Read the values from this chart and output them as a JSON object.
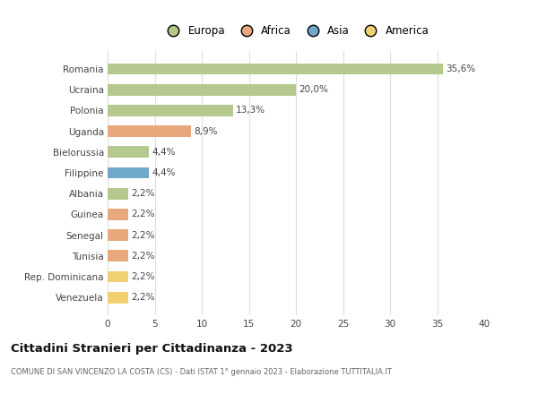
{
  "categories": [
    "Romania",
    "Ucraina",
    "Polonia",
    "Uganda",
    "Bielorussia",
    "Filippine",
    "Albania",
    "Guinea",
    "Senegal",
    "Tunisia",
    "Rep. Dominicana",
    "Venezuela"
  ],
  "values": [
    35.6,
    20.0,
    13.3,
    8.9,
    4.4,
    4.4,
    2.2,
    2.2,
    2.2,
    2.2,
    2.2,
    2.2
  ],
  "labels": [
    "35,6%",
    "20,0%",
    "13,3%",
    "8,9%",
    "4,4%",
    "4,4%",
    "2,2%",
    "2,2%",
    "2,2%",
    "2,2%",
    "2,2%",
    "2,2%"
  ],
  "bar_colors": [
    "#b5c98e",
    "#b5c98e",
    "#b5c98e",
    "#e8a87c",
    "#b5c98e",
    "#6fa8c8",
    "#b5c98e",
    "#e8a87c",
    "#e8a87c",
    "#e8a87c",
    "#f0d070",
    "#f0d070"
  ],
  "legend_labels": [
    "Europa",
    "Africa",
    "Asia",
    "America"
  ],
  "legend_colors": [
    "#b5c98e",
    "#e8a87c",
    "#6fa8c8",
    "#f0d070"
  ],
  "title": "Cittadini Stranieri per Cittadinanza - 2023",
  "subtitle": "COMUNE DI SAN VINCENZO LA COSTA (CS) - Dati ISTAT 1° gennaio 2023 - Elaborazione TUTTITALIA.IT",
  "xlim": [
    0,
    40
  ],
  "xticks": [
    0,
    5,
    10,
    15,
    20,
    25,
    30,
    35,
    40
  ],
  "background_color": "#ffffff",
  "grid_color": "#dddddd"
}
